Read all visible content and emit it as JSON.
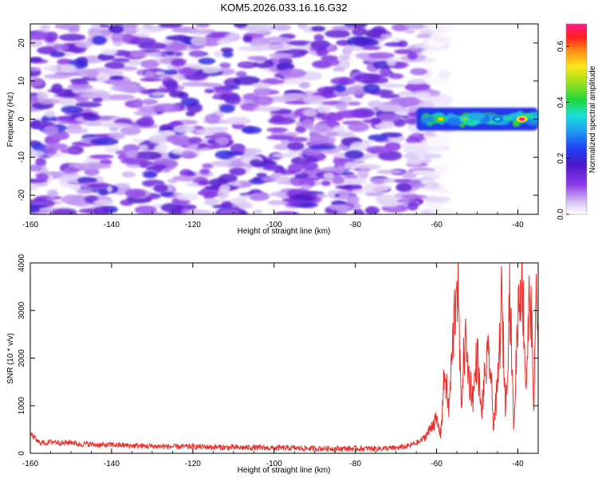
{
  "chart_data": [
    {
      "type": "heatmap",
      "title": "KOM5.2026.033.16.16.G32",
      "xlabel": "Height of straight line (km)",
      "ylabel": "Frequency (Hz)",
      "xlim": [
        -160,
        -35
      ],
      "ylim": [
        -25,
        25
      ],
      "xticks": [
        -160,
        -140,
        -120,
        -100,
        -80,
        -60,
        -40
      ],
      "xtick_labels": [
        "-160",
        "-140",
        "-120",
        "-100",
        "-80",
        "-60",
        "-40"
      ],
      "yticks": [
        -20,
        -10,
        0,
        10,
        20
      ],
      "ytick_labels": [
        "-20",
        "-10",
        "0",
        "10",
        "20"
      ],
      "colorbar": {
        "label": "Normalized spectral amplitude",
        "range": [
          0.0,
          0.68
        ],
        "ticks": [
          0.0,
          0.2,
          0.4,
          0.6
        ],
        "tick_labels": [
          "0.0",
          "0.2",
          "0.4",
          "0.6"
        ]
      },
      "noise_region_km": [
        -160,
        -62
      ],
      "signal_band": {
        "x_start": -65,
        "x_end": -35,
        "freq_center": 0,
        "freq_halfwidth": 3
      },
      "signal_peaks": [
        {
          "x": -59,
          "freq": 0,
          "amplitude": 0.55
        },
        {
          "x": -53,
          "freq": 0,
          "amplitude": 0.45
        },
        {
          "x": -45,
          "freq": 0,
          "amplitude": 0.35
        },
        {
          "x": -39,
          "freq": 0,
          "amplitude": 0.68
        }
      ]
    },
    {
      "type": "line",
      "title": "",
      "xlabel": "Height of straight line (km)",
      "ylabel": "SNR (10 * v/v)",
      "xlim": [
        -160,
        -35
      ],
      "ylim": [
        0,
        4000
      ],
      "xticks": [
        -160,
        -140,
        -120,
        -100,
        -80,
        -60,
        -40
      ],
      "xtick_labels": [
        "-160",
        "-140",
        "-120",
        "-100",
        "-80",
        "-60",
        "-40"
      ],
      "yticks": [
        0,
        1000,
        2000,
        3000,
        4000
      ],
      "ytick_labels": [
        "0",
        "1000",
        "2000",
        "3000",
        "4000"
      ],
      "series": [
        {
          "name": "SNR",
          "color": "#e8302c",
          "x": [
            -160,
            -158,
            -156,
            -154,
            -152,
            -150,
            -148,
            -146,
            -144,
            -142,
            -140,
            -135,
            -130,
            -125,
            -120,
            -115,
            -110,
            -105,
            -100,
            -95,
            -90,
            -85,
            -80,
            -75,
            -70,
            -67,
            -64,
            -62,
            -61,
            -60,
            -59,
            -58,
            -57,
            -56,
            -55.5,
            -55,
            -54.5,
            -54,
            -53,
            -52,
            -51,
            -50,
            -49,
            -48,
            -47,
            -46,
            -45,
            -44,
            -43,
            -42,
            -41,
            -40,
            -39,
            -38,
            -37,
            -36,
            -35.5,
            -35
          ],
          "values": [
            420,
            230,
            220,
            250,
            210,
            240,
            190,
            200,
            180,
            170,
            180,
            160,
            150,
            140,
            140,
            130,
            120,
            120,
            110,
            110,
            100,
            100,
            100,
            100,
            110,
            150,
            250,
            450,
            650,
            700,
            400,
            1800,
            900,
            2400,
            3100,
            4000,
            2800,
            1000,
            2500,
            1600,
            1200,
            2200,
            800,
            1800,
            2100,
            600,
            1400,
            3300,
            900,
            3600,
            500,
            3100,
            4000,
            1400,
            3600,
            1000,
            3900,
            2200
          ],
          "noise_amp_low_snr": 60
        }
      ]
    }
  ]
}
